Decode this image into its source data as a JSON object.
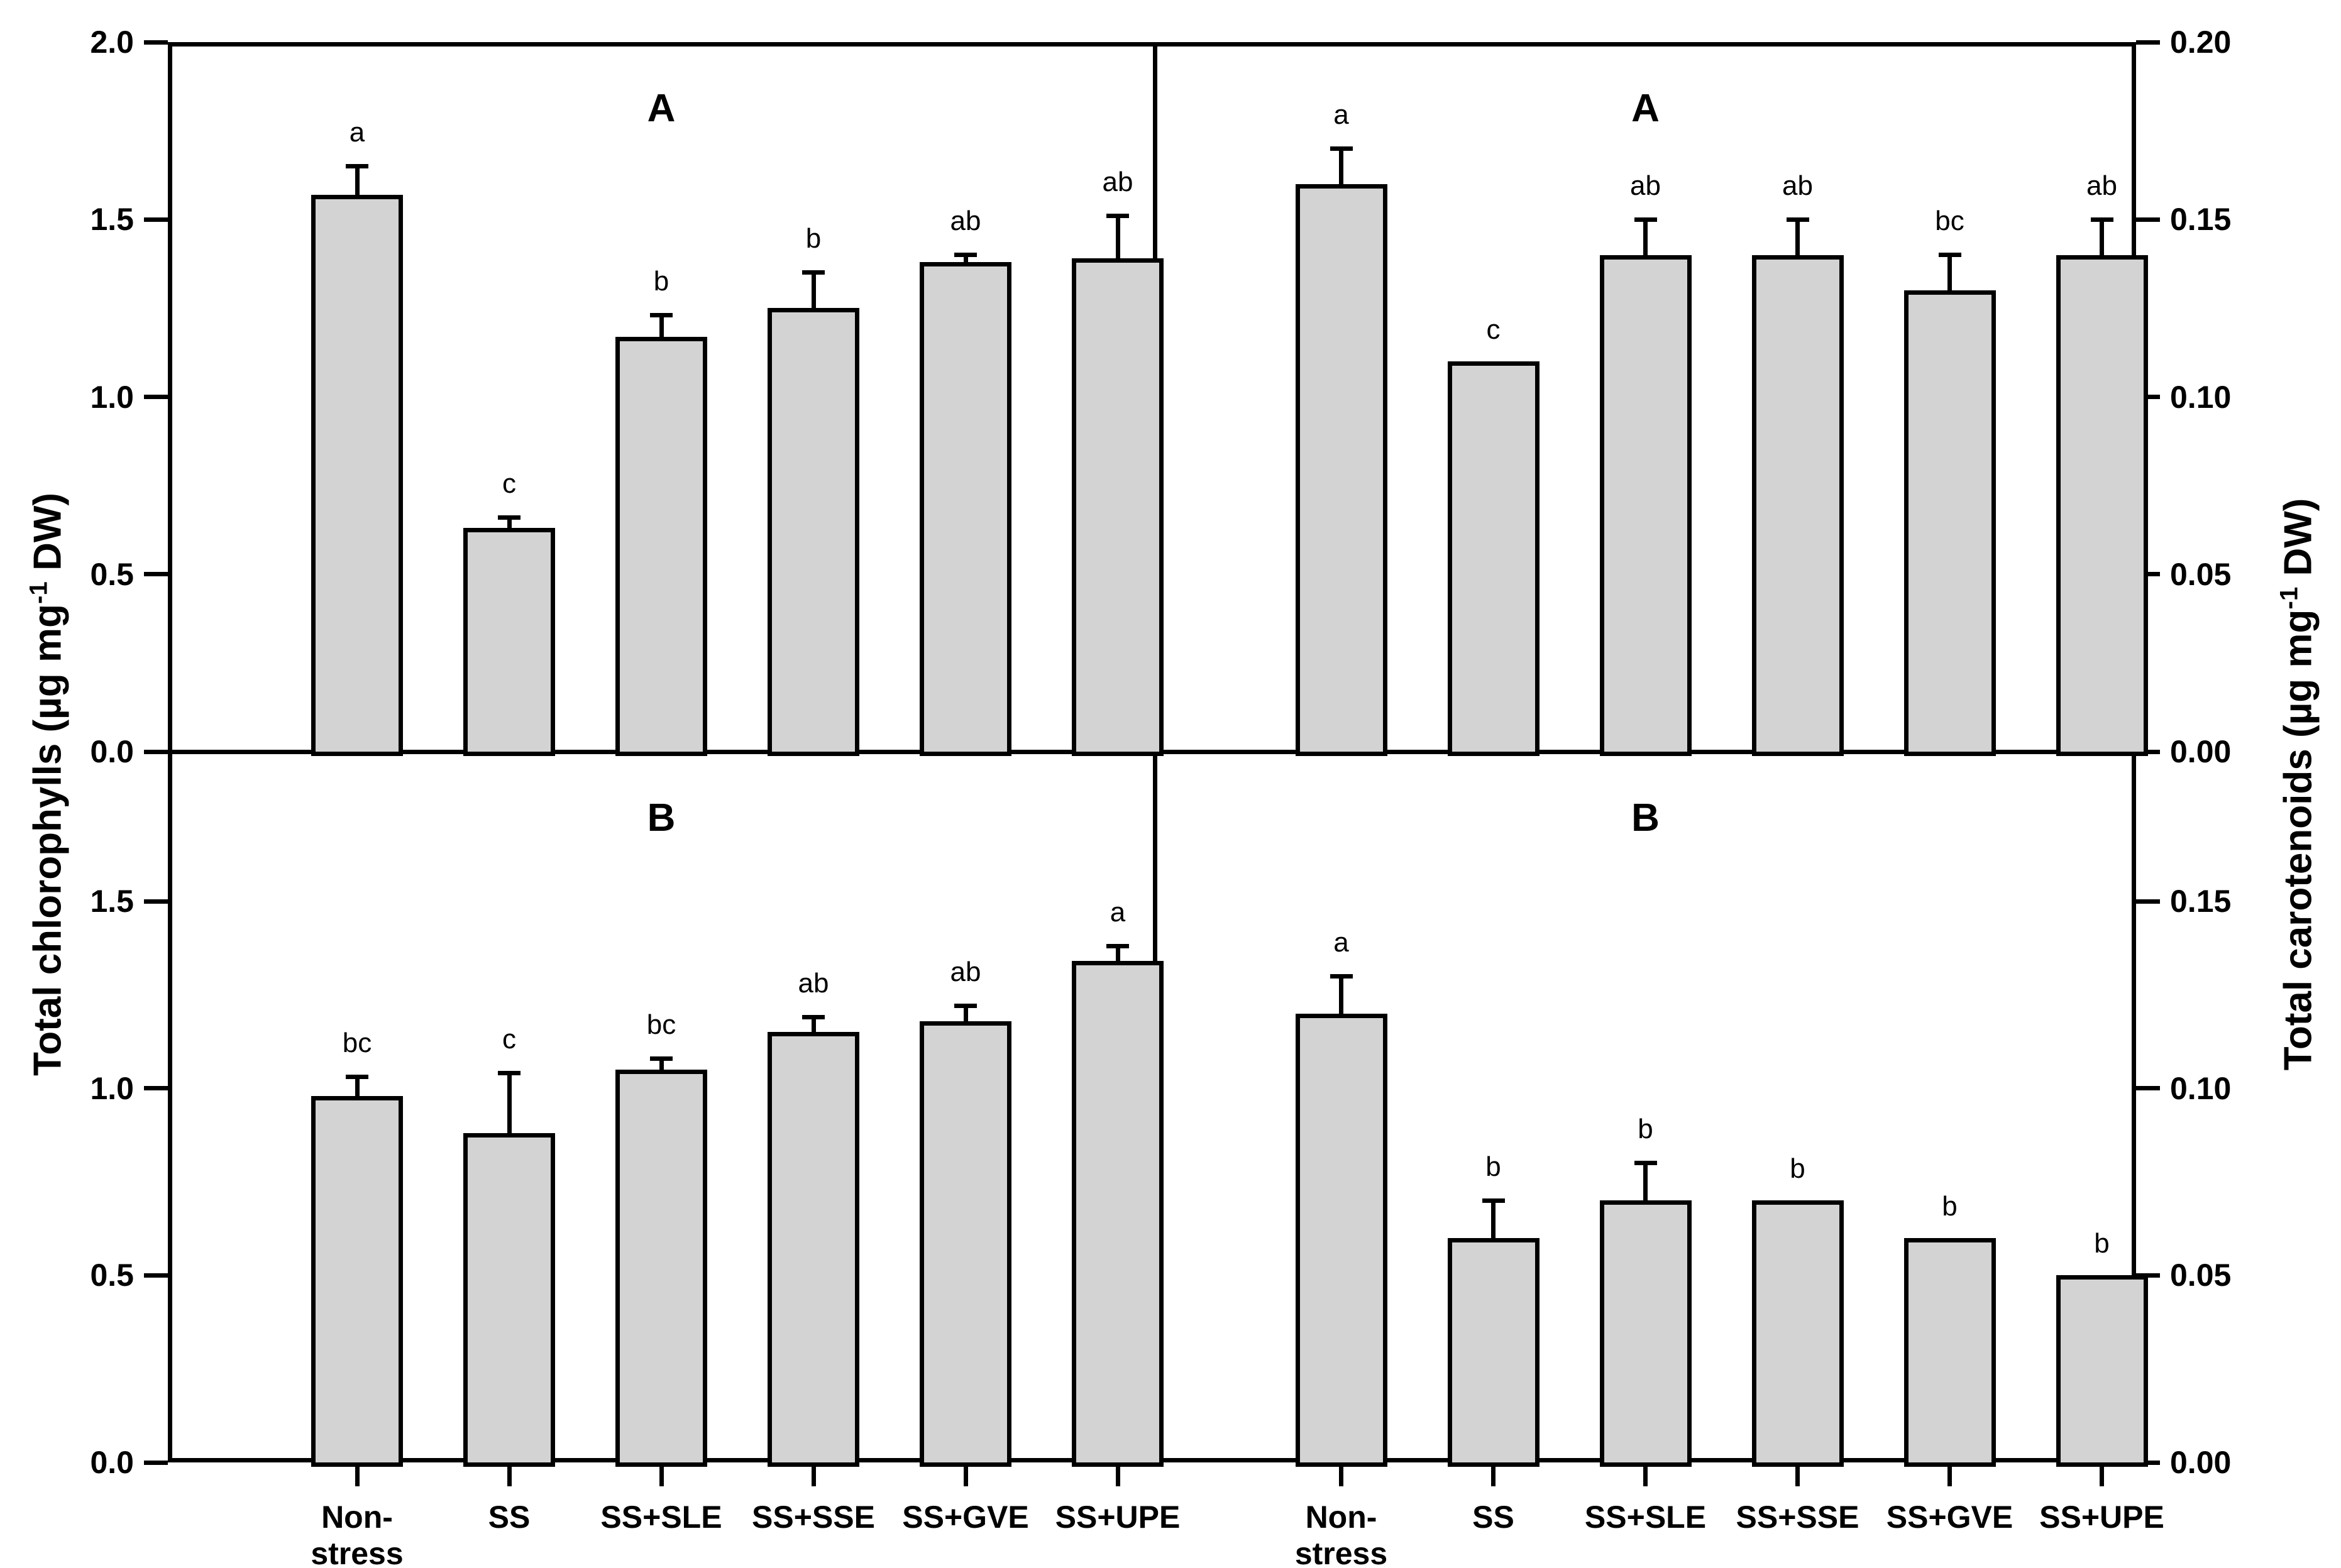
{
  "figure": {
    "background": "#ffffff",
    "bar_fill": "#d3d3d3",
    "bar_edge": "#000000",
    "axis_color": "#000000",
    "left_axis_title": {
      "pre": "Total chlorophylls (µg mg",
      "sup": "-1",
      "post": " DW)"
    },
    "right_axis_title": {
      "pre": "Total carotenoids (µg mg",
      "sup": "-1",
      "post": " DW)"
    },
    "category_lines": [
      [
        "Non-",
        "stress"
      ],
      [
        "SS"
      ],
      [
        "SS+SLE"
      ],
      [
        "SS+SSE"
      ],
      [
        "SS+GVE"
      ],
      [
        "SS+UPE"
      ]
    ]
  },
  "chart_data": [
    {
      "type": "bar",
      "position": "top-left",
      "panel_label": "A",
      "ylabel": "Total chlorophylls (µg mg-1 DW)",
      "categories": [
        "Non-stress",
        "SS",
        "SS+SLE",
        "SS+SSE",
        "SS+GVE",
        "SS+UPE"
      ],
      "values": [
        1.57,
        0.63,
        1.17,
        1.25,
        1.38,
        1.39
      ],
      "errors": [
        0.08,
        0.03,
        0.06,
        0.1,
        0.02,
        0.12
      ],
      "sig_letters": [
        "a",
        "c",
        "b",
        "b",
        "ab",
        "ab"
      ],
      "ylim": [
        0,
        2.0
      ],
      "grid": false,
      "yticks": [
        {
          "value": 2.0,
          "label": "2.0"
        },
        {
          "value": 1.5,
          "label": "1.5"
        },
        {
          "value": 1.0,
          "label": "1.0"
        },
        {
          "value": 0.5,
          "label": "0.5"
        },
        {
          "value": 0.0,
          "label": "0.0"
        }
      ]
    },
    {
      "type": "bar",
      "position": "top-right",
      "panel_label": "A",
      "ylabel": "Total carotenoids (µg mg-1 DW)",
      "categories": [
        "Non-stress",
        "SS",
        "SS+SLE",
        "SS+SSE",
        "SS+GVE",
        "SS+UPE"
      ],
      "values": [
        0.16,
        0.11,
        0.14,
        0.14,
        0.13,
        0.14
      ],
      "errors": [
        0.01,
        null,
        0.01,
        0.01,
        0.01,
        0.01
      ],
      "sig_letters": [
        "a",
        "c",
        "ab",
        "ab",
        "bc",
        "ab"
      ],
      "ylim": [
        0,
        0.2
      ],
      "grid": false,
      "yticks": [
        {
          "value": 0.2,
          "label": "0.20"
        },
        {
          "value": 0.15,
          "label": "0.15"
        },
        {
          "value": 0.1,
          "label": "0.10"
        },
        {
          "value": 0.05,
          "label": "0.05"
        },
        {
          "value": 0.0,
          "label": "0.00"
        }
      ]
    },
    {
      "type": "bar",
      "position": "bottom-left",
      "panel_label": "B",
      "ylabel": "Total chlorophylls (µg mg-1 DW)",
      "categories": [
        "Non-stress",
        "SS",
        "SS+SLE",
        "SS+SSE",
        "SS+GVE",
        "SS+UPE"
      ],
      "values": [
        0.98,
        0.88,
        1.05,
        1.15,
        1.18,
        1.34
      ],
      "errors": [
        0.05,
        0.16,
        0.03,
        0.04,
        0.04,
        0.04
      ],
      "sig_letters": [
        "bc",
        "c",
        "bc",
        "ab",
        "ab",
        "a"
      ],
      "ylim": [
        0,
        1.9
      ],
      "grid": false,
      "yticks": [
        {
          "value": 1.5,
          "label": "1.5"
        },
        {
          "value": 1.0,
          "label": "1.0"
        },
        {
          "value": 0.5,
          "label": "0.5"
        },
        {
          "value": 0.0,
          "label": "0.0"
        }
      ]
    },
    {
      "type": "bar",
      "position": "bottom-right",
      "panel_label": "B",
      "ylabel": "Total carotenoids (µg mg-1 DW)",
      "categories": [
        "Non-stress",
        "SS",
        "SS+SLE",
        "SS+SSE",
        "SS+GVE",
        "SS+UPE"
      ],
      "values": [
        0.12,
        0.06,
        0.07,
        0.07,
        0.06,
        0.05
      ],
      "errors": [
        0.01,
        0.01,
        0.01,
        null,
        null,
        null
      ],
      "sig_letters": [
        "a",
        "b",
        "b",
        "b",
        "b",
        "b"
      ],
      "ylim": [
        0,
        0.19
      ],
      "grid": false,
      "yticks": [
        {
          "value": 0.15,
          "label": "0.15"
        },
        {
          "value": 0.1,
          "label": "0.10"
        },
        {
          "value": 0.05,
          "label": "0.05"
        },
        {
          "value": 0.0,
          "label": "0.00"
        }
      ]
    }
  ]
}
